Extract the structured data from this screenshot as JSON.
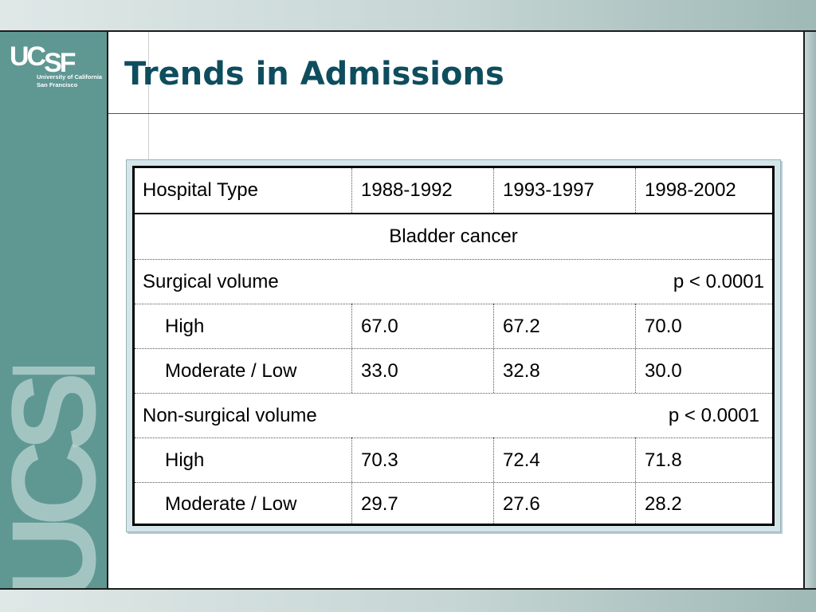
{
  "logo": {
    "mark_uc": "UC",
    "mark_sf": "SF",
    "line1": "University of California",
    "line2": "San Francisco",
    "watermark": "UCSF"
  },
  "slide": {
    "title": "Trends in Admissions"
  },
  "table": {
    "columns": [
      "Hospital Type",
      "1988-1992",
      "1993-1997",
      "1998-2002"
    ],
    "section": "Bladder cancer",
    "groups": [
      {
        "label": "Surgical volume",
        "p_value": "p < 0.0001",
        "rows": [
          {
            "label": "High",
            "values": [
              "67.0",
              "67.2",
              "70.0"
            ]
          },
          {
            "label": "Moderate / Low",
            "values": [
              "33.0",
              "32.8",
              "30.0"
            ]
          }
        ]
      },
      {
        "label": "Non-surgical volume",
        "p_value": "p < 0.0001",
        "rows": [
          {
            "label": "High",
            "values": [
              "70.3",
              "72.4",
              "71.8"
            ]
          },
          {
            "label": "Moderate / Low",
            "values": [
              "29.7",
              "27.6",
              "28.2"
            ]
          }
        ]
      }
    ]
  },
  "colors": {
    "title": "#0e4d5e",
    "sidebar": "#5f9793",
    "rule": "#8b3a3a",
    "table_frame": "#d5e6ea"
  }
}
